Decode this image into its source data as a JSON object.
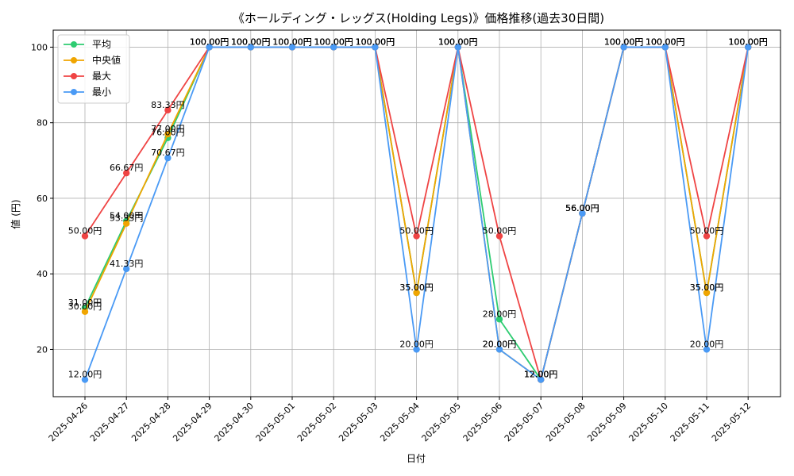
{
  "chart_data": {
    "type": "line",
    "title": "《ホールディング・レッグス(Holding Legs)》価格推移(過去30日間)",
    "xlabel": "日付",
    "ylabel": "値 (円)",
    "ylim": [
      7.5,
      104.5
    ],
    "yticks": [
      20,
      40,
      60,
      80,
      100
    ],
    "grid": true,
    "legend_position": "top-left",
    "label_suffix": "円",
    "categories": [
      "2025-04-26",
      "2025-04-27",
      "2025-04-28",
      "2025-04-29",
      "2025-04-30",
      "2025-05-01",
      "2025-05-02",
      "2025-05-03",
      "2025-05-04",
      "2025-05-05",
      "2025-05-06",
      "2025-05-07",
      "2025-05-08",
      "2025-05-09",
      "2025-05-10",
      "2025-05-11",
      "2025-05-12"
    ],
    "series": [
      {
        "name": "平均",
        "color": "#2ecc71",
        "values": [
          31.0,
          54.0,
          76.0,
          100,
          100,
          100,
          100,
          100,
          35.0,
          100,
          28.0,
          12.0,
          56.0,
          100,
          100,
          35.0,
          100
        ]
      },
      {
        "name": "中央値",
        "color": "#f0a500",
        "values": [
          30.0,
          53.33,
          77.0,
          100,
          100,
          100,
          100,
          100,
          35.0,
          100,
          20.0,
          12.0,
          56.0,
          100,
          100,
          35.0,
          100
        ]
      },
      {
        "name": "最大",
        "color": "#ef4444",
        "values": [
          50.0,
          66.67,
          83.33,
          100,
          100,
          100,
          100,
          100,
          50.0,
          100,
          50.0,
          12.0,
          56.0,
          100,
          100,
          50.0,
          100
        ]
      },
      {
        "name": "最小",
        "color": "#4a9af5",
        "values": [
          12.0,
          41.33,
          70.67,
          100,
          100,
          100,
          100,
          100,
          20.0,
          100,
          20.0,
          12.0,
          56.0,
          100,
          100,
          20.0,
          100
        ]
      }
    ]
  }
}
